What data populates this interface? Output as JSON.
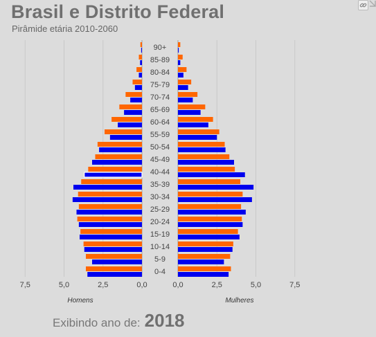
{
  "header": {
    "title": "Brasil e Distrito Federal",
    "subtitle": "Pirâmide etária 2010-2060"
  },
  "footer": {
    "prefix": "Exibindo ano de:",
    "year": "2018"
  },
  "icons": {
    "link": "link-icon",
    "corner": "corner-marker-icon"
  },
  "chart_data": {
    "type": "bar",
    "orientation": "horizontal-population-pyramid",
    "categories": [
      "90+",
      "85-89",
      "80-84",
      "75-79",
      "70-74",
      "65-69",
      "60-64",
      "55-59",
      "50-54",
      "45-49",
      "40-44",
      "35-39",
      "30-34",
      "25-29",
      "20-24",
      "15-19",
      "10-14",
      "5-9",
      "0-4"
    ],
    "left_label": "Homens",
    "right_label": "Mulheres",
    "left_ticks": [
      "7,5",
      "5,0",
      "2,5",
      "0,0"
    ],
    "right_ticks": [
      "0,0",
      "2,5",
      "5,0",
      "7,5"
    ],
    "xlim": [
      0,
      8.1
    ],
    "grid": true,
    "colors": {
      "orange": "#ff6600",
      "blue": "#0000ee"
    },
    "highlighted": {
      "side": "left",
      "category": "40-44",
      "series": "blue"
    },
    "left": {
      "orange": [
        0.1,
        0.2,
        0.35,
        0.6,
        1.05,
        1.45,
        1.95,
        2.4,
        2.85,
        3.0,
        3.45,
        3.9,
        4.1,
        4.05,
        4.15,
        3.95,
        3.75,
        3.6,
        3.6
      ],
      "blue": [
        0.05,
        0.12,
        0.2,
        0.45,
        0.75,
        1.15,
        1.55,
        2.05,
        2.75,
        3.2,
        3.7,
        4.4,
        4.45,
        4.2,
        4.05,
        4.0,
        3.7,
        3.2,
        3.5
      ]
    },
    "right": {
      "orange": [
        0.15,
        0.3,
        0.55,
        0.85,
        1.25,
        1.75,
        2.25,
        2.65,
        3.0,
        3.3,
        3.65,
        4.0,
        4.15,
        4.05,
        4.1,
        3.85,
        3.55,
        3.35,
        3.4
      ],
      "blue": [
        0.05,
        0.15,
        0.35,
        0.65,
        0.95,
        1.45,
        1.95,
        2.5,
        3.05,
        3.6,
        4.3,
        4.85,
        4.75,
        4.35,
        4.15,
        3.95,
        3.5,
        2.95,
        3.25
      ]
    }
  }
}
